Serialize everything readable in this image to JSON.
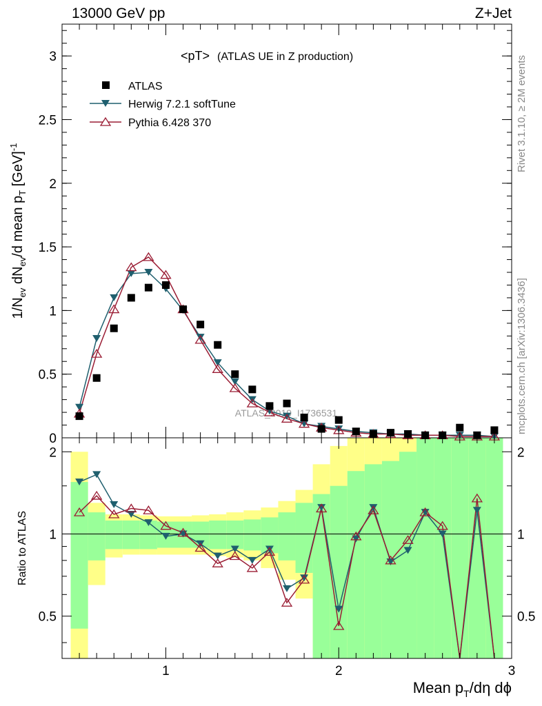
{
  "header": {
    "left": "13000 GeV pp",
    "right": "Z+Jet"
  },
  "plot_title": {
    "main": "<pT>",
    "sub": "(ATLAS UE in Z production)"
  },
  "side_text": {
    "rivet": "Rivet 3.1.10, ≥ 2M events",
    "mcplots": "mcplots.cern.ch [arXiv:1306.3436]"
  },
  "watermark": "ATLAS_2019_I1736531",
  "colors": {
    "atlas": "#000000",
    "herwig": "#1f5f6e",
    "pythia": "#9a1c33",
    "band_inner": "#99ff99",
    "band_outer": "#ffff88"
  },
  "chart_data": [
    {
      "type": "scatter",
      "panel": "main",
      "xlabel_parts": [
        "Mean p",
        "T",
        "/dη dϕ"
      ],
      "ylabel_parts": [
        "1/N",
        "ev",
        " dN",
        "ev",
        "/d mean p",
        "T",
        " [GeV]",
        "-1"
      ],
      "xlim": [
        0.4,
        3.0
      ],
      "ylim": [
        0,
        3.25
      ],
      "y_ticks": [
        0,
        0.5,
        1,
        1.5,
        2,
        2.5,
        3
      ],
      "y_tick_labels": [
        "0",
        "0.5",
        "1",
        "1.5",
        "2",
        "2.5",
        "3"
      ],
      "legend_placement": "top-left",
      "x": [
        0.5,
        0.6,
        0.7,
        0.8,
        0.9,
        1.0,
        1.1,
        1.2,
        1.3,
        1.4,
        1.5,
        1.6,
        1.7,
        1.8,
        1.9,
        2.0,
        2.1,
        2.2,
        2.3,
        2.4,
        2.5,
        2.6,
        2.7,
        2.8,
        2.9
      ],
      "series": [
        {
          "name": "ATLAS",
          "marker": "square",
          "values": [
            0.17,
            0.47,
            0.86,
            1.1,
            1.18,
            1.2,
            1.01,
            0.89,
            0.73,
            0.5,
            0.38,
            0.25,
            0.27,
            0.16,
            0.07,
            0.14,
            0.05,
            0.03,
            0.04,
            0.03,
            0.02,
            0.02,
            0.08,
            0.02,
            0.06
          ]
        },
        {
          "name": "Herwig 7.2.1 softTune",
          "marker": "triangle-down",
          "values": [
            0.24,
            0.78,
            1.1,
            1.29,
            1.3,
            1.17,
            1.0,
            0.79,
            0.59,
            0.44,
            0.3,
            0.21,
            0.17,
            0.11,
            0.09,
            0.07,
            0.05,
            0.04,
            0.03,
            0.03,
            0.02,
            0.02,
            0.02,
            0.02,
            0.01
          ]
        },
        {
          "name": "Pythia 6.428 370",
          "marker": "triangle-up-open",
          "values": [
            0.19,
            0.66,
            1.01,
            1.34,
            1.42,
            1.28,
            1.01,
            0.77,
            0.54,
            0.39,
            0.27,
            0.2,
            0.15,
            0.11,
            0.08,
            0.06,
            0.04,
            0.03,
            0.03,
            0.02,
            0.02,
            0.02,
            0.01,
            0.01,
            0.01
          ]
        }
      ]
    },
    {
      "type": "line",
      "panel": "ratio",
      "ylabel": "Ratio to ATLAS",
      "xlim": [
        0.4,
        3.0
      ],
      "ylim": [
        0.35,
        2.25
      ],
      "x_ticks": [
        1,
        2,
        3
      ],
      "x_tick_labels": [
        "1",
        "2",
        "3"
      ],
      "y_ticks": [
        0.5,
        1,
        2
      ],
      "y_tick_labels": [
        "0.5",
        "1",
        "2"
      ],
      "reference_line": 1,
      "x": [
        0.5,
        0.6,
        0.7,
        0.8,
        0.9,
        1.0,
        1.1,
        1.2,
        1.3,
        1.4,
        1.5,
        1.6,
        1.7,
        1.8,
        1.9,
        2.0,
        2.1,
        2.2,
        2.3,
        2.4,
        2.5,
        2.6,
        2.7,
        2.8,
        2.9
      ],
      "bands": {
        "inner_low": [
          0.45,
          0.8,
          0.88,
          0.88,
          0.88,
          0.89,
          0.89,
          0.89,
          0.88,
          0.88,
          0.87,
          0.85,
          0.8,
          0.72,
          0.35,
          0.35,
          0.35,
          0.35,
          0.35,
          0.35,
          0.35,
          0.35,
          0.35,
          0.35,
          0.35
        ],
        "inner_high": [
          1.55,
          1.2,
          1.12,
          1.12,
          1.12,
          1.11,
          1.11,
          1.11,
          1.12,
          1.12,
          1.13,
          1.15,
          1.2,
          1.3,
          1.4,
          1.5,
          1.7,
          1.8,
          1.85,
          2.0,
          2.25,
          2.25,
          2.25,
          2.25,
          2.25
        ],
        "outer_low": [
          0.35,
          0.65,
          0.82,
          0.84,
          0.84,
          0.84,
          0.84,
          0.84,
          0.83,
          0.82,
          0.8,
          0.75,
          0.68,
          0.58,
          0.35,
          0.35,
          0.35,
          0.35,
          0.35,
          0.35,
          0.35,
          0.35,
          0.35,
          0.35,
          0.35
        ],
        "outer_high": [
          2.0,
          1.3,
          1.18,
          1.18,
          1.17,
          1.16,
          1.16,
          1.17,
          1.18,
          1.2,
          1.22,
          1.25,
          1.32,
          1.45,
          1.8,
          2.1,
          2.25,
          2.25,
          2.25,
          2.25,
          2.25,
          2.25,
          2.25,
          2.25,
          2.25
        ]
      },
      "series": [
        {
          "name": "Herwig 7.2.1 softTune",
          "values": [
            1.55,
            1.65,
            1.28,
            1.18,
            1.1,
            0.98,
            1.0,
            0.92,
            0.83,
            0.88,
            0.8,
            0.88,
            0.63,
            0.69,
            1.25,
            0.53,
            0.96,
            1.25,
            0.79,
            0.87,
            1.2,
            1.0,
            0.3,
            1.22,
            0.3
          ]
        },
        {
          "name": "Pythia 6.428 370",
          "values": [
            1.2,
            1.38,
            1.18,
            1.24,
            1.22,
            1.07,
            1.01,
            0.89,
            0.78,
            0.83,
            0.75,
            0.86,
            0.56,
            0.68,
            1.24,
            0.46,
            0.98,
            1.22,
            0.8,
            0.95,
            1.2,
            1.07,
            0.3,
            1.35,
            0.3
          ]
        }
      ]
    }
  ]
}
